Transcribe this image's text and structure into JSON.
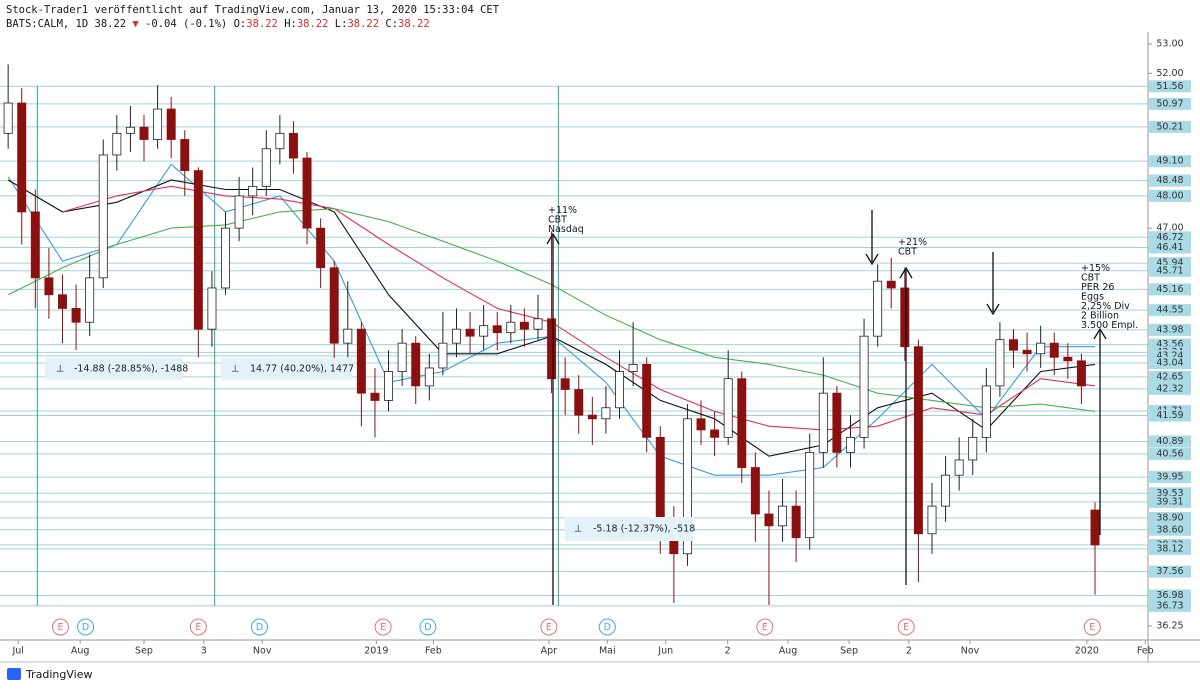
{
  "header": {
    "line1": "Stock-Trader1 veröffentlicht auf TradingView.com, Januar 13, 2020 15:33:04 CET",
    "symbol": "BATS:CALM, 1D 38.22",
    "change": "-0.04 (-0.1%)",
    "ohlc": [
      {
        "key": "O:",
        "value": "38.22"
      },
      {
        "key": "H:",
        "value": "38.22"
      },
      {
        "key": "L:",
        "value": "38.22"
      },
      {
        "key": "C:",
        "value": "38.22"
      }
    ]
  },
  "footer": {
    "logo": "TradingView"
  },
  "chart_data": {
    "type": "candlestick",
    "log_scale": true,
    "ylim": [
      35.92,
      53.42
    ],
    "xlim": [
      -0.6,
      83.9
    ],
    "yticks": [
      {
        "value": 53,
        "label": "53.00"
      },
      {
        "value": 52,
        "label": "52.00"
      },
      {
        "value": 47,
        "label": "47.00"
      },
      {
        "value": 36.25,
        "label": "36.25"
      }
    ],
    "xticks": [
      {
        "value": 0.74,
        "label": "Jul"
      },
      {
        "value": 5.3,
        "label": "Aug"
      },
      {
        "value": 10,
        "label": "Sep"
      },
      {
        "value": 14.4,
        "label": "3"
      },
      {
        "value": 18.7,
        "label": "Nov"
      },
      {
        "value": 27.1,
        "label": "2019"
      },
      {
        "value": 31.3,
        "label": "Feb"
      },
      {
        "value": 39.8,
        "label": "Apr"
      },
      {
        "value": 44.1,
        "label": "Mai"
      },
      {
        "value": 48.4,
        "label": "Jun"
      },
      {
        "value": 52.96,
        "label": "2"
      },
      {
        "value": 57.4,
        "label": "Aug"
      },
      {
        "value": 61.9,
        "label": "Sep"
      },
      {
        "value": 66.3,
        "label": "2"
      },
      {
        "value": 70.8,
        "label": "Nov"
      },
      {
        "value": 79.4,
        "label": "2020"
      },
      {
        "value": 83.7,
        "label": "Feb"
      }
    ],
    "levels": [
      {
        "value": 51.56,
        "label": "51.56"
      },
      {
        "value": 50.97,
        "label": "50.97"
      },
      {
        "value": 50.21,
        "label": "50.21"
      },
      {
        "value": 49.1,
        "label": "49.10"
      },
      {
        "value": 48.48,
        "label": "48.48"
      },
      {
        "value": 48,
        "label": "48.00"
      },
      {
        "value": 46.72,
        "label": "46.72"
      },
      {
        "value": 46.41,
        "label": "46.41"
      },
      {
        "value": 45.94,
        "label": "45.94"
      },
      {
        "value": 45.71,
        "label": "45.71"
      },
      {
        "value": 45.16,
        "label": "45.16"
      },
      {
        "value": 44.55,
        "label": "44.55"
      },
      {
        "value": 43.98,
        "label": "43.98"
      },
      {
        "value": 43.56,
        "label": "43.56"
      },
      {
        "value": 43.34,
        "label": "43.34"
      },
      {
        "value": 43.24,
        "label": "43.24"
      },
      {
        "value": 43.04,
        "label": "43.04"
      },
      {
        "value": 42.65,
        "label": "42.65"
      },
      {
        "value": 42.32,
        "label": "42.32"
      },
      {
        "value": 41.71,
        "label": "41.71"
      },
      {
        "value": 41.59,
        "label": "41.59"
      },
      {
        "value": 40.89,
        "label": "40.89"
      },
      {
        "value": 40.56,
        "label": "40.56"
      },
      {
        "value": 39.95,
        "label": "39.95"
      },
      {
        "value": 39.53,
        "label": "39.53"
      },
      {
        "value": 39.31,
        "label": "39.31"
      },
      {
        "value": 38.9,
        "label": "38.90"
      },
      {
        "value": 38.6,
        "label": "38.60"
      },
      {
        "value": 38.22,
        "label": "38.22"
      },
      {
        "value": 38.12,
        "label": "38.12"
      },
      {
        "value": 37.56,
        "label": "37.56"
      },
      {
        "value": 36.98,
        "label": "36.98"
      },
      {
        "value": 36.73,
        "label": "36.73"
      }
    ],
    "up_color": "#ffffff",
    "down_color": "#8b1010",
    "candles": [
      [
        50.0,
        52.3,
        49.5,
        51.0
      ],
      [
        51.0,
        51.5,
        46.5,
        47.5
      ],
      [
        47.5,
        48.2,
        44.6,
        45.5
      ],
      [
        45.5,
        46.4,
        44.3,
        45.0
      ],
      [
        45.0,
        45.6,
        43.6,
        44.6
      ],
      [
        44.6,
        45.3,
        43.4,
        44.2
      ],
      [
        44.2,
        46.2,
        43.8,
        45.5
      ],
      [
        45.5,
        49.8,
        45.2,
        49.3
      ],
      [
        49.3,
        50.6,
        48.8,
        50.0
      ],
      [
        50.0,
        50.9,
        49.4,
        50.2
      ],
      [
        50.2,
        50.6,
        49.1,
        49.8
      ],
      [
        49.8,
        51.6,
        49.5,
        50.8
      ],
      [
        50.8,
        51.2,
        49.2,
        49.8
      ],
      [
        49.8,
        50.1,
        48.0,
        48.8
      ],
      [
        48.8,
        48.9,
        43.2,
        44.0
      ],
      [
        44.0,
        45.7,
        43.5,
        45.2
      ],
      [
        45.2,
        47.5,
        45.0,
        47.0
      ],
      [
        47.0,
        48.6,
        46.6,
        48.0
      ],
      [
        48.0,
        48.9,
        47.4,
        48.3
      ],
      [
        48.3,
        50.1,
        48.0,
        49.5
      ],
      [
        49.5,
        50.6,
        49.0,
        50.0
      ],
      [
        50.0,
        50.4,
        48.7,
        49.2
      ],
      [
        49.2,
        49.4,
        46.5,
        47.0
      ],
      [
        47.0,
        47.3,
        45.2,
        45.8
      ],
      [
        45.8,
        46.0,
        43.0,
        43.6
      ],
      [
        43.6,
        45.4,
        43.2,
        44.0
      ],
      [
        44.0,
        44.2,
        41.3,
        42.2
      ],
      [
        42.2,
        42.9,
        41.0,
        42.0
      ],
      [
        42.0,
        43.4,
        41.7,
        42.8
      ],
      [
        42.8,
        44.0,
        42.4,
        43.6
      ],
      [
        43.6,
        43.8,
        41.9,
        42.4
      ],
      [
        42.4,
        43.3,
        42.0,
        42.9
      ],
      [
        42.9,
        44.5,
        42.7,
        43.6
      ],
      [
        43.6,
        44.6,
        43.2,
        44.0
      ],
      [
        44.0,
        44.5,
        43.3,
        43.8
      ],
      [
        43.8,
        44.7,
        43.4,
        44.1
      ],
      [
        44.1,
        44.5,
        43.4,
        43.9
      ],
      [
        43.9,
        44.7,
        43.6,
        44.2
      ],
      [
        44.2,
        44.6,
        43.5,
        44.0
      ],
      [
        44.0,
        45.0,
        43.7,
        44.3
      ],
      [
        44.3,
        46.9,
        42.2,
        42.6
      ],
      [
        42.6,
        43.2,
        41.6,
        42.3
      ],
      [
        42.3,
        42.7,
        41.1,
        41.6
      ],
      [
        41.6,
        42.1,
        40.8,
        41.5
      ],
      [
        41.5,
        42.4,
        41.1,
        41.8
      ],
      [
        41.8,
        43.4,
        41.5,
        42.8
      ],
      [
        42.8,
        44.2,
        42.4,
        43.0
      ],
      [
        43.0,
        43.2,
        40.6,
        41.0
      ],
      [
        41.0,
        41.3,
        38.0,
        38.6
      ],
      [
        38.6,
        39.2,
        36.8,
        38.0
      ],
      [
        38.0,
        41.9,
        37.7,
        41.5
      ],
      [
        41.5,
        42.0,
        40.8,
        41.2
      ],
      [
        41.2,
        41.7,
        40.5,
        41.0
      ],
      [
        41.0,
        43.4,
        40.8,
        42.6
      ],
      [
        42.6,
        42.8,
        39.8,
        40.2
      ],
      [
        40.2,
        40.6,
        38.3,
        39.0
      ],
      [
        39.0,
        39.6,
        36.75,
        38.7
      ],
      [
        38.7,
        39.9,
        38.3,
        39.2
      ],
      [
        39.2,
        39.6,
        37.8,
        38.4
      ],
      [
        38.4,
        41.1,
        38.1,
        40.6
      ],
      [
        40.6,
        43.2,
        40.2,
        42.2
      ],
      [
        42.2,
        42.4,
        40.2,
        40.6
      ],
      [
        40.6,
        41.6,
        40.2,
        41.0
      ],
      [
        41.0,
        44.3,
        40.7,
        43.8
      ],
      [
        43.8,
        45.9,
        43.5,
        45.4
      ],
      [
        45.4,
        46.1,
        44.6,
        45.2
      ],
      [
        45.2,
        45.8,
        43.1,
        43.5
      ],
      [
        43.5,
        43.7,
        37.3,
        38.5
      ],
      [
        38.5,
        39.8,
        38.0,
        39.2
      ],
      [
        39.2,
        40.5,
        38.8,
        40.0
      ],
      [
        40.0,
        41.0,
        39.6,
        40.4
      ],
      [
        40.4,
        41.5,
        40.0,
        41.0
      ],
      [
        41.0,
        42.9,
        40.6,
        42.4
      ],
      [
        42.4,
        44.2,
        42.1,
        43.7
      ],
      [
        43.7,
        44.0,
        42.9,
        43.4
      ],
      [
        43.4,
        43.9,
        42.8,
        43.3
      ],
      [
        43.3,
        44.1,
        42.9,
        43.6
      ],
      [
        43.6,
        43.9,
        42.7,
        43.2
      ],
      [
        43.2,
        43.6,
        42.6,
        43.1
      ],
      [
        43.1,
        43.3,
        41.9,
        42.4
      ],
      [
        39.1,
        39.3,
        37.0,
        38.22
      ]
    ],
    "series": [
      {
        "color": "#3d9be0",
        "x": [
          0,
          4,
          8,
          12,
          16,
          20,
          24,
          28,
          32,
          36,
          40,
          44,
          48,
          52,
          56,
          60,
          64,
          68,
          72,
          76,
          80
        ],
        "values": [
          48.6,
          46.0,
          46.5,
          49.0,
          47.5,
          48.0,
          46.0,
          42.5,
          42.8,
          43.6,
          43.8,
          42.5,
          40.5,
          40.0,
          40.0,
          40.2,
          41.5,
          43.0,
          41.5,
          43.5,
          43.5
        ]
      },
      {
        "color": "#111111",
        "x": [
          0,
          4,
          8,
          12,
          16,
          20,
          24,
          28,
          32,
          36,
          40,
          44,
          48,
          52,
          56,
          60,
          64,
          68,
          72,
          76,
          80
        ],
        "values": [
          48.5,
          47.5,
          47.8,
          48.5,
          48.2,
          48.2,
          47.5,
          45.0,
          43.3,
          43.3,
          43.8,
          43.0,
          42.0,
          41.5,
          40.5,
          40.8,
          41.8,
          42.2,
          41.2,
          42.8,
          43.0
        ]
      },
      {
        "color": "#e0305a",
        "x": [
          0,
          4,
          8,
          12,
          16,
          20,
          24,
          28,
          32,
          36,
          40,
          44,
          48,
          52,
          56,
          60,
          64,
          68,
          72,
          76,
          80
        ],
        "values": [
          null,
          47.5,
          48.0,
          48.3,
          48.0,
          47.9,
          47.6,
          46.5,
          45.5,
          44.6,
          44.2,
          43.2,
          42.3,
          41.7,
          41.3,
          41.2,
          41.3,
          41.8,
          41.6,
          42.6,
          42.4
        ]
      },
      {
        "color": "#4caf50",
        "x": [
          0,
          4,
          8,
          12,
          16,
          20,
          24,
          28,
          32,
          36,
          40,
          44,
          48,
          52,
          56,
          60,
          64,
          68,
          72,
          76,
          80
        ],
        "values": [
          45.0,
          45.8,
          46.5,
          47.0,
          47.1,
          47.5,
          47.6,
          47.2,
          46.6,
          46.0,
          45.3,
          44.4,
          43.7,
          43.2,
          43.0,
          42.7,
          42.2,
          42.0,
          41.8,
          41.9,
          41.7
        ]
      }
    ],
    "vlines": [
      2.15,
      15.2,
      40.5
    ],
    "events": [
      {
        "label": "E",
        "x": 3.85
      },
      {
        "label": "D",
        "x": 5.7
      },
      {
        "label": "E",
        "x": 14.0
      },
      {
        "label": "D",
        "x": 18.5
      },
      {
        "label": "E",
        "x": 27.6
      },
      {
        "label": "D",
        "x": 30.9
      },
      {
        "label": "E",
        "x": 39.8
      },
      {
        "label": "D",
        "x": 44.1
      },
      {
        "label": "E",
        "x": 55.7
      },
      {
        "label": "E",
        "x": 66.1
      },
      {
        "label": "E",
        "x": 79.8
      }
    ],
    "measures": [
      "-14.88 (-28.85%), -1488",
      "14.77 (40.20%), 1477",
      "-5.18 (-12.37%), -518"
    ],
    "annotations": [
      [
        "+11%",
        "CBT",
        "Nasdaq"
      ],
      [
        "+21%",
        "CBT"
      ],
      [
        "+15%",
        "CBT",
        "PER 26",
        "Eggs",
        "2,25% Div",
        "2 Billion",
        "3.500 Empl."
      ]
    ]
  }
}
